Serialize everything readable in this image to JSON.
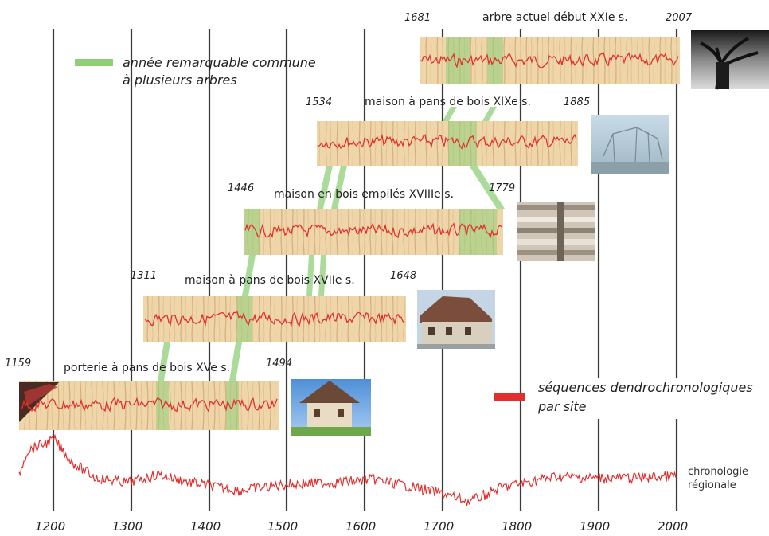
{
  "axis": {
    "ticks": [
      "1200",
      "1300",
      "1400",
      "1500",
      "1600",
      "1700",
      "1800",
      "1900",
      "2000"
    ]
  },
  "legend": {
    "green_line1": "année remarquable commune",
    "green_line2": "à plusieurs arbres",
    "red_line1": "séquences dendrochronologiques",
    "red_line2": "par site"
  },
  "regional": {
    "line1": "chronologie",
    "line2": "régionale"
  },
  "sites": [
    {
      "start": "1159",
      "end": "1494",
      "label": "porterie à pans de bois XVe s.",
      "photo": "porterie-photo"
    },
    {
      "start": "1311",
      "end": "1648",
      "label": "maison à pans de bois XVIIe s.",
      "photo": "maison-xvii-photo"
    },
    {
      "start": "1446",
      "end": "1779",
      "label": "maison en bois empilés XVIIIe s.",
      "photo": "maison-empiles-photo"
    },
    {
      "start": "1534",
      "end": "1885",
      "label": "maison à pans de bois XIXe s.",
      "photo": "maison-xix-photo"
    },
    {
      "start": "1681",
      "end": "2007",
      "label": "arbre actuel début XXIe s.",
      "photo": "arbre-photo"
    }
  ],
  "colors": {
    "wood": "#eed3a6",
    "ring": "#c99f6a",
    "sequence": "#e0302e",
    "common_year": "#8fcf7a",
    "gridline": "#3a3a3a"
  }
}
